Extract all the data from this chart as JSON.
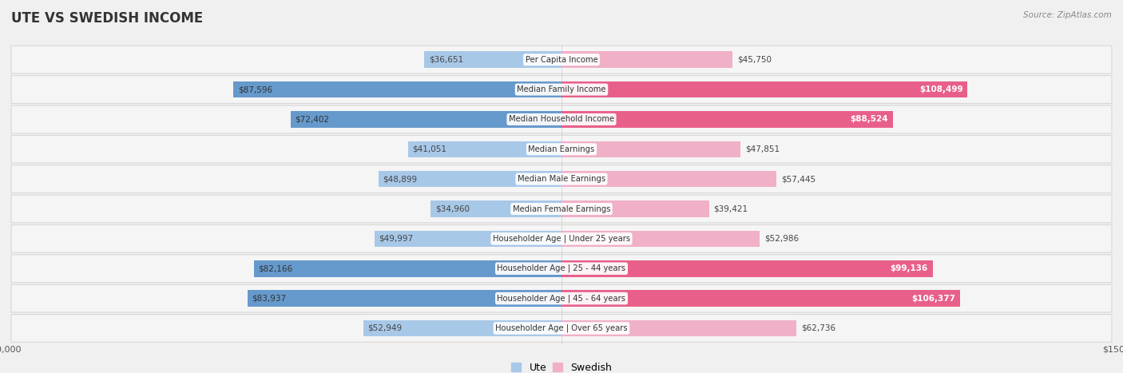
{
  "title": "UTE VS SWEDISH INCOME",
  "source": "Source: ZipAtlas.com",
  "categories": [
    "Per Capita Income",
    "Median Family Income",
    "Median Household Income",
    "Median Earnings",
    "Median Male Earnings",
    "Median Female Earnings",
    "Householder Age | Under 25 years",
    "Householder Age | 25 - 44 years",
    "Householder Age | 45 - 64 years",
    "Householder Age | Over 65 years"
  ],
  "ute_values": [
    36651,
    87596,
    72402,
    41051,
    48899,
    34960,
    49997,
    82166,
    83937,
    52949
  ],
  "swedish_values": [
    45750,
    108499,
    88524,
    47851,
    57445,
    39421,
    52986,
    99136,
    106377,
    62736
  ],
  "ute_labels": [
    "$36,651",
    "$87,596",
    "$72,402",
    "$41,051",
    "$48,899",
    "$34,960",
    "$49,997",
    "$82,166",
    "$83,937",
    "$52,949"
  ],
  "swedish_labels": [
    "$45,750",
    "$108,499",
    "$88,524",
    "$47,851",
    "$57,445",
    "$39,421",
    "$52,986",
    "$99,136",
    "$106,377",
    "$62,736"
  ],
  "ute_color_light": "#a8c8e8",
  "ute_color_strong": "#6699cc",
  "swedish_color_light": "#f0b0c8",
  "swedish_color_strong": "#e8608a",
  "max_val": 150000,
  "fig_bg": "#f0f0f0",
  "row_bg": "#f5f5f5",
  "row_border": "#d8d8d8",
  "ute_strong_threshold": 65000,
  "swedish_strong_threshold": 85000,
  "label_inside_threshold_ute": 65000,
  "label_inside_threshold_sw": 85000
}
